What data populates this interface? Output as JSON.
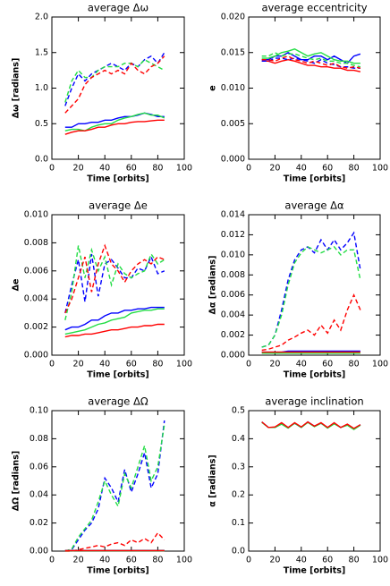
{
  "chart_data": [
    {
      "type": "line",
      "title": "average Δω",
      "xlabel": "Time [orbits]",
      "ylabel": "Δω [radians]",
      "x": [
        10,
        15,
        20,
        25,
        30,
        35,
        40,
        45,
        50,
        55,
        60,
        65,
        70,
        75,
        80,
        85
      ],
      "xlim": [
        0,
        100
      ],
      "xticks": [
        0,
        20,
        40,
        60,
        80,
        100
      ],
      "ylim": [
        0,
        2
      ],
      "yticks": [
        {
          "value": 0,
          "label": "0.0"
        },
        {
          "value": 0.5,
          "label": "0.5"
        },
        {
          "value": 1,
          "label": "1.0"
        },
        {
          "value": 1.5,
          "label": "1.5"
        },
        {
          "value": 2,
          "label": "2.0"
        }
      ],
      "series": [
        {
          "color": "#0000ff",
          "dash": true,
          "values": [
            0.75,
            1.0,
            1.2,
            1.1,
            1.2,
            1.25,
            1.3,
            1.35,
            1.3,
            1.25,
            1.35,
            1.3,
            1.4,
            1.45,
            1.35,
            1.5
          ]
        },
        {
          "color": "#22dd44",
          "dash": true,
          "values": [
            0.8,
            1.1,
            1.25,
            1.15,
            1.15,
            1.25,
            1.3,
            1.3,
            1.3,
            1.35,
            1.35,
            1.3,
            1.4,
            1.35,
            1.3,
            1.25
          ]
        },
        {
          "color": "#ff0000",
          "dash": true,
          "values": [
            0.65,
            0.75,
            0.85,
            1.05,
            1.15,
            1.2,
            1.25,
            1.2,
            1.25,
            1.2,
            1.35,
            1.25,
            1.2,
            1.3,
            1.35,
            1.45
          ]
        },
        {
          "color": "#0000ff",
          "dash": false,
          "values": [
            0.45,
            0.45,
            0.5,
            0.5,
            0.52,
            0.52,
            0.55,
            0.55,
            0.58,
            0.6,
            0.6,
            0.62,
            0.65,
            0.63,
            0.6,
            0.6
          ]
        },
        {
          "color": "#22dd44",
          "dash": false,
          "values": [
            0.4,
            0.42,
            0.42,
            0.4,
            0.45,
            0.48,
            0.5,
            0.5,
            0.55,
            0.58,
            0.6,
            0.63,
            0.65,
            0.62,
            0.62,
            0.58
          ]
        },
        {
          "color": "#ff0000",
          "dash": false,
          "values": [
            0.35,
            0.38,
            0.4,
            0.4,
            0.42,
            0.45,
            0.45,
            0.48,
            0.5,
            0.5,
            0.52,
            0.53,
            0.53,
            0.54,
            0.55,
            0.55
          ]
        }
      ]
    },
    {
      "type": "line",
      "title": "average eccentricity",
      "xlabel": "Time [orbits]",
      "ylabel": "e",
      "x": [
        10,
        15,
        20,
        25,
        30,
        35,
        40,
        45,
        50,
        55,
        60,
        65,
        70,
        75,
        80,
        85
      ],
      "xlim": [
        0,
        100
      ],
      "xticks": [
        0,
        20,
        40,
        60,
        80,
        100
      ],
      "ylim": [
        0,
        0.02
      ],
      "yticks": [
        {
          "value": 0,
          "label": "0.000"
        },
        {
          "value": 0.005,
          "label": "0.005"
        },
        {
          "value": 0.01,
          "label": "0.010"
        },
        {
          "value": 0.015,
          "label": "0.015"
        },
        {
          "value": 0.02,
          "label": "0.020"
        }
      ],
      "series": [
        {
          "color": "#0000ff",
          "dash": false,
          "values": [
            0.014,
            0.014,
            0.0145,
            0.0145,
            0.015,
            0.0145,
            0.014,
            0.014,
            0.0145,
            0.0145,
            0.014,
            0.0145,
            0.014,
            0.0135,
            0.0145,
            0.0148
          ]
        },
        {
          "color": "#22dd44",
          "dash": false,
          "values": [
            0.0142,
            0.0142,
            0.0145,
            0.015,
            0.0152,
            0.0155,
            0.015,
            0.0145,
            0.0148,
            0.015,
            0.0145,
            0.014,
            0.0138,
            0.0138,
            0.0135,
            0.0135
          ]
        },
        {
          "color": "#ff0000",
          "dash": false,
          "values": [
            0.0138,
            0.0138,
            0.0135,
            0.0138,
            0.014,
            0.0138,
            0.0135,
            0.0132,
            0.0132,
            0.013,
            0.013,
            0.0128,
            0.0128,
            0.0125,
            0.0125,
            0.0123
          ]
        },
        {
          "color": "#0000ff",
          "dash": true,
          "values": [
            0.0138,
            0.0138,
            0.0142,
            0.0142,
            0.014,
            0.0142,
            0.014,
            0.0138,
            0.0135,
            0.014,
            0.0135,
            0.0133,
            0.013,
            0.013,
            0.0128,
            0.0128
          ]
        },
        {
          "color": "#22dd44",
          "dash": true,
          "values": [
            0.0145,
            0.0145,
            0.015,
            0.0145,
            0.0148,
            0.0148,
            0.0145,
            0.0142,
            0.014,
            0.0142,
            0.0138,
            0.0138,
            0.0135,
            0.0135,
            0.0132,
            0.013
          ]
        },
        {
          "color": "#ff0000",
          "dash": true,
          "values": [
            0.014,
            0.014,
            0.0138,
            0.0142,
            0.0145,
            0.014,
            0.0138,
            0.0135,
            0.0138,
            0.0135,
            0.0132,
            0.0135,
            0.013,
            0.0128,
            0.013,
            0.0128
          ]
        }
      ]
    },
    {
      "type": "line",
      "title": "average Δe",
      "xlabel": "Time [orbits]",
      "ylabel": "Δe",
      "x": [
        10,
        15,
        20,
        25,
        30,
        35,
        40,
        45,
        50,
        55,
        60,
        65,
        70,
        75,
        80,
        85
      ],
      "xlim": [
        0,
        100
      ],
      "xticks": [
        0,
        20,
        40,
        60,
        80,
        100
      ],
      "ylim": [
        0,
        0.01
      ],
      "yticks": [
        {
          "value": 0,
          "label": "0.000"
        },
        {
          "value": 0.002,
          "label": "0.002"
        },
        {
          "value": 0.004,
          "label": "0.004"
        },
        {
          "value": 0.006,
          "label": "0.006"
        },
        {
          "value": 0.008,
          "label": "0.008"
        },
        {
          "value": 0.01,
          "label": "0.010"
        }
      ],
      "series": [
        {
          "color": "#0000ff",
          "dash": true,
          "values": [
            0.003,
            0.005,
            0.0068,
            0.0038,
            0.0072,
            0.0042,
            0.0065,
            0.0068,
            0.0062,
            0.0055,
            0.0055,
            0.0062,
            0.006,
            0.007,
            0.0058,
            0.006
          ]
        },
        {
          "color": "#22dd44",
          "dash": true,
          "values": [
            0.0025,
            0.0045,
            0.0078,
            0.0055,
            0.0075,
            0.006,
            0.007,
            0.005,
            0.0065,
            0.0058,
            0.0055,
            0.0058,
            0.006,
            0.0072,
            0.0065,
            0.0068
          ]
        },
        {
          "color": "#ff0000",
          "dash": true,
          "values": [
            0.003,
            0.004,
            0.0055,
            0.007,
            0.0045,
            0.0065,
            0.0078,
            0.0065,
            0.006,
            0.0052,
            0.006,
            0.0065,
            0.0068,
            0.0065,
            0.007,
            0.0068
          ]
        },
        {
          "color": "#0000ff",
          "dash": false,
          "values": [
            0.0018,
            0.002,
            0.002,
            0.0022,
            0.0025,
            0.0025,
            0.0028,
            0.003,
            0.003,
            0.0032,
            0.0032,
            0.0033,
            0.0033,
            0.0034,
            0.0034,
            0.0034
          ]
        },
        {
          "color": "#22dd44",
          "dash": false,
          "values": [
            0.0015,
            0.0016,
            0.0017,
            0.0018,
            0.002,
            0.0022,
            0.0023,
            0.0025,
            0.0026,
            0.0027,
            0.003,
            0.0031,
            0.0032,
            0.0032,
            0.0033,
            0.0033
          ]
        },
        {
          "color": "#ff0000",
          "dash": false,
          "values": [
            0.0013,
            0.0014,
            0.0014,
            0.0015,
            0.0015,
            0.0016,
            0.0017,
            0.0018,
            0.0018,
            0.0019,
            0.002,
            0.002,
            0.0021,
            0.0021,
            0.0022,
            0.0022
          ]
        }
      ]
    },
    {
      "type": "line",
      "title": "average Δα",
      "xlabel": "Time [orbits]",
      "ylabel": "Δα [radians]",
      "x": [
        10,
        15,
        20,
        25,
        30,
        35,
        40,
        45,
        50,
        55,
        60,
        65,
        70,
        75,
        80,
        85
      ],
      "xlim": [
        0,
        100
      ],
      "xticks": [
        0,
        20,
        40,
        60,
        80,
        100
      ],
      "ylim": [
        0,
        0.014
      ],
      "yticks": [
        {
          "value": 0,
          "label": "0.000"
        },
        {
          "value": 0.002,
          "label": "0.002"
        },
        {
          "value": 0.004,
          "label": "0.004"
        },
        {
          "value": 0.006,
          "label": "0.006"
        },
        {
          "value": 0.008,
          "label": "0.008"
        },
        {
          "value": 0.01,
          "label": "0.010"
        },
        {
          "value": 0.012,
          "label": "0.012"
        },
        {
          "value": 0.014,
          "label": "0.014"
        }
      ],
      "series": [
        {
          "color": "#0000ff",
          "dash": true,
          "values": [
            0.0008,
            0.001,
            0.002,
            0.0045,
            0.0075,
            0.0095,
            0.0105,
            0.0108,
            0.0102,
            0.0115,
            0.0105,
            0.0115,
            0.0105,
            0.0112,
            0.0122,
            0.0085
          ]
        },
        {
          "color": "#22dd44",
          "dash": true,
          "values": [
            0.0008,
            0.001,
            0.002,
            0.004,
            0.007,
            0.0092,
            0.0102,
            0.0108,
            0.0105,
            0.0102,
            0.0105,
            0.0108,
            0.01,
            0.0105,
            0.0105,
            0.0075
          ]
        },
        {
          "color": "#ff0000",
          "dash": true,
          "values": [
            0.0005,
            0.0006,
            0.0008,
            0.001,
            0.0015,
            0.0018,
            0.0022,
            0.0025,
            0.002,
            0.003,
            0.0022,
            0.0035,
            0.0025,
            0.0045,
            0.006,
            0.0045
          ]
        },
        {
          "color": "#0000ff",
          "dash": false,
          "values": [
            0.0003,
            0.0003,
            0.0003,
            0.0003,
            0.0004,
            0.0004,
            0.0004,
            0.0004,
            0.0004,
            0.0004,
            0.0004,
            0.0004,
            0.0004,
            0.0004,
            0.0004,
            0.0004
          ]
        },
        {
          "color": "#22dd44",
          "dash": false,
          "values": [
            0.0002,
            0.0002,
            0.0002,
            0.0002,
            0.0002,
            0.0002,
            0.0002,
            0.0002,
            0.0002,
            0.0002,
            0.0002,
            0.0002,
            0.0002,
            0.0002,
            0.0002,
            0.0002
          ]
        },
        {
          "color": "#ff0000",
          "dash": false,
          "values": [
            0.0003,
            0.0003,
            0.0003,
            0.0003,
            0.0003,
            0.0003,
            0.0003,
            0.0003,
            0.0003,
            0.0003,
            0.0003,
            0.0003,
            0.0003,
            0.0003,
            0.0003,
            0.0003
          ]
        }
      ]
    },
    {
      "type": "line",
      "title": "average ΔΩ",
      "xlabel": "Time [orbits]",
      "ylabel": "ΔΩ [radians]",
      "x": [
        10,
        15,
        20,
        25,
        30,
        35,
        40,
        45,
        50,
        55,
        60,
        65,
        70,
        75,
        80,
        85
      ],
      "xlim": [
        0,
        100
      ],
      "xticks": [
        0,
        20,
        40,
        60,
        80,
        100
      ],
      "ylim": [
        0,
        0.1
      ],
      "yticks": [
        {
          "value": 0,
          "label": "0.00"
        },
        {
          "value": 0.02,
          "label": "0.02"
        },
        {
          "value": 0.04,
          "label": "0.04"
        },
        {
          "value": 0.06,
          "label": "0.06"
        },
        {
          "value": 0.08,
          "label": "0.08"
        },
        {
          "value": 0.1,
          "label": "0.10"
        }
      ],
      "series": [
        {
          "color": "#0000ff",
          "dash": true,
          "values": [
            0,
            0.001,
            0.008,
            0.015,
            0.02,
            0.03,
            0.052,
            0.045,
            0.035,
            0.058,
            0.042,
            0.055,
            0.07,
            0.045,
            0.055,
            0.093
          ]
        },
        {
          "color": "#22dd44",
          "dash": true,
          "values": [
            0,
            0.0015,
            0.01,
            0.016,
            0.022,
            0.035,
            0.05,
            0.04,
            0.032,
            0.055,
            0.045,
            0.06,
            0.075,
            0.05,
            0.06,
            0.09
          ]
        },
        {
          "color": "#ff0000",
          "dash": true,
          "values": [
            0,
            0,
            0.001,
            0.002,
            0.003,
            0.004,
            0.003,
            0.005,
            0.006,
            0.004,
            0.008,
            0.006,
            0.009,
            0.006,
            0.013,
            0.008
          ]
        },
        {
          "color": "#0000ff",
          "dash": false,
          "values": [
            0.0005,
            0.0005,
            0.0005,
            0.0005,
            0.0005,
            0.0005,
            0.0005,
            0.0005,
            0.0005,
            0.0005,
            0.0005,
            0.0005,
            0.0005,
            0.0005,
            0.0005,
            0.0005
          ]
        },
        {
          "color": "#22dd44",
          "dash": false,
          "values": [
            0.0003,
            0.0003,
            0.0003,
            0.0003,
            0.0003,
            0.0003,
            0.0003,
            0.0003,
            0.0003,
            0.0003,
            0.0003,
            0.0003,
            0.0003,
            0.0003,
            0.0003,
            0.0003
          ]
        },
        {
          "color": "#ff0000",
          "dash": false,
          "values": [
            0.0004,
            0.0004,
            0.0004,
            0.0004,
            0.0004,
            0.0004,
            0.0004,
            0.0004,
            0.0004,
            0.0004,
            0.0004,
            0.0004,
            0.0004,
            0.0004,
            0.0004,
            0.0004
          ]
        }
      ]
    },
    {
      "type": "line",
      "title": "average inclination",
      "xlabel": "Time [orbits]",
      "ylabel": "α [radians]",
      "x": [
        10,
        15,
        20,
        25,
        30,
        35,
        40,
        45,
        50,
        55,
        60,
        65,
        70,
        75,
        80,
        85
      ],
      "xlim": [
        0,
        100
      ],
      "xticks": [
        0,
        20,
        40,
        60,
        80,
        100
      ],
      "ylim": [
        0,
        0.5
      ],
      "yticks": [
        {
          "value": 0,
          "label": "0.0"
        },
        {
          "value": 0.1,
          "label": "0.1"
        },
        {
          "value": 0.2,
          "label": "0.2"
        },
        {
          "value": 0.3,
          "label": "0.3"
        },
        {
          "value": 0.4,
          "label": "0.4"
        },
        {
          "value": 0.5,
          "label": "0.5"
        }
      ],
      "series": [
        {
          "color": "#0000ff",
          "dash": false,
          "values": [
            0.46,
            0.44,
            0.44,
            0.455,
            0.44,
            0.455,
            0.44,
            0.46,
            0.445,
            0.455,
            0.44,
            0.455,
            0.44,
            0.45,
            0.435,
            0.45
          ]
        },
        {
          "color": "#22dd44",
          "dash": false,
          "values": [
            0.458,
            0.44,
            0.44,
            0.452,
            0.438,
            0.455,
            0.44,
            0.458,
            0.443,
            0.455,
            0.438,
            0.453,
            0.44,
            0.448,
            0.433,
            0.448
          ]
        },
        {
          "color": "#ff0000",
          "dash": false,
          "values": [
            0.46,
            0.44,
            0.442,
            0.457,
            0.44,
            0.457,
            0.442,
            0.46,
            0.445,
            0.457,
            0.44,
            0.457,
            0.44,
            0.452,
            0.437,
            0.45
          ]
        }
      ]
    }
  ]
}
